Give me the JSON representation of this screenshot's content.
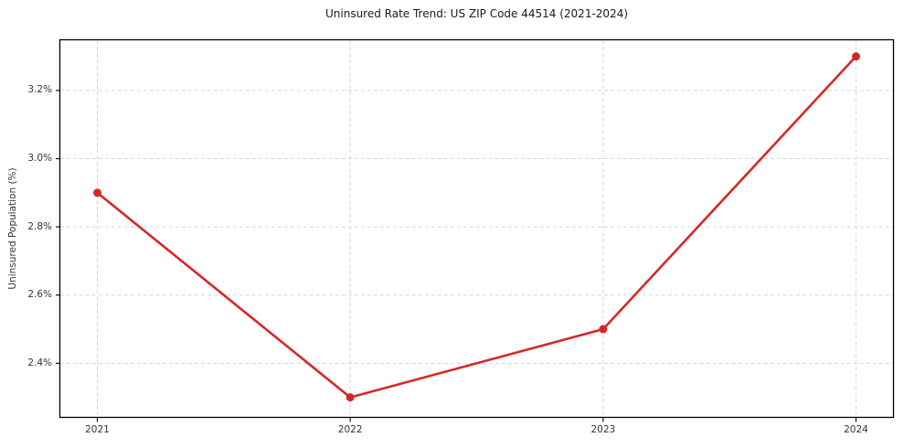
{
  "figure": {
    "background": "#ffffff",
    "border_color": "#000000",
    "grid_color": "#d7d7d7",
    "text_color": "#333333"
  },
  "chart_data": {
    "type": "line",
    "title": "Uninsured Rate Trend: US ZIP Code 44514 (2021-2024)",
    "xlabel": "",
    "ylabel": "Uninsured Population (%)",
    "x": [
      2021,
      2022,
      2023,
      2024
    ],
    "values": [
      2.9,
      2.3,
      2.5,
      3.3
    ],
    "line_color": "#d62728",
    "marker": "circle",
    "grid": true,
    "grid_style": "dashed",
    "legend_position": "none",
    "xlim": [
      2020.85,
      2024.15
    ],
    "ylim": [
      2.24,
      3.35
    ],
    "x_ticks": [
      {
        "value": 2021,
        "label": "2021"
      },
      {
        "value": 2022,
        "label": "2022"
      },
      {
        "value": 2023,
        "label": "2023"
      },
      {
        "value": 2024,
        "label": "2024"
      }
    ],
    "y_ticks": [
      {
        "value": 2.4,
        "label": "2.4%"
      },
      {
        "value": 2.6,
        "label": "2.6%"
      },
      {
        "value": 2.8,
        "label": "2.8%"
      },
      {
        "value": 3.0,
        "label": "3.0%"
      },
      {
        "value": 3.2,
        "label": "3.2%"
      }
    ]
  }
}
